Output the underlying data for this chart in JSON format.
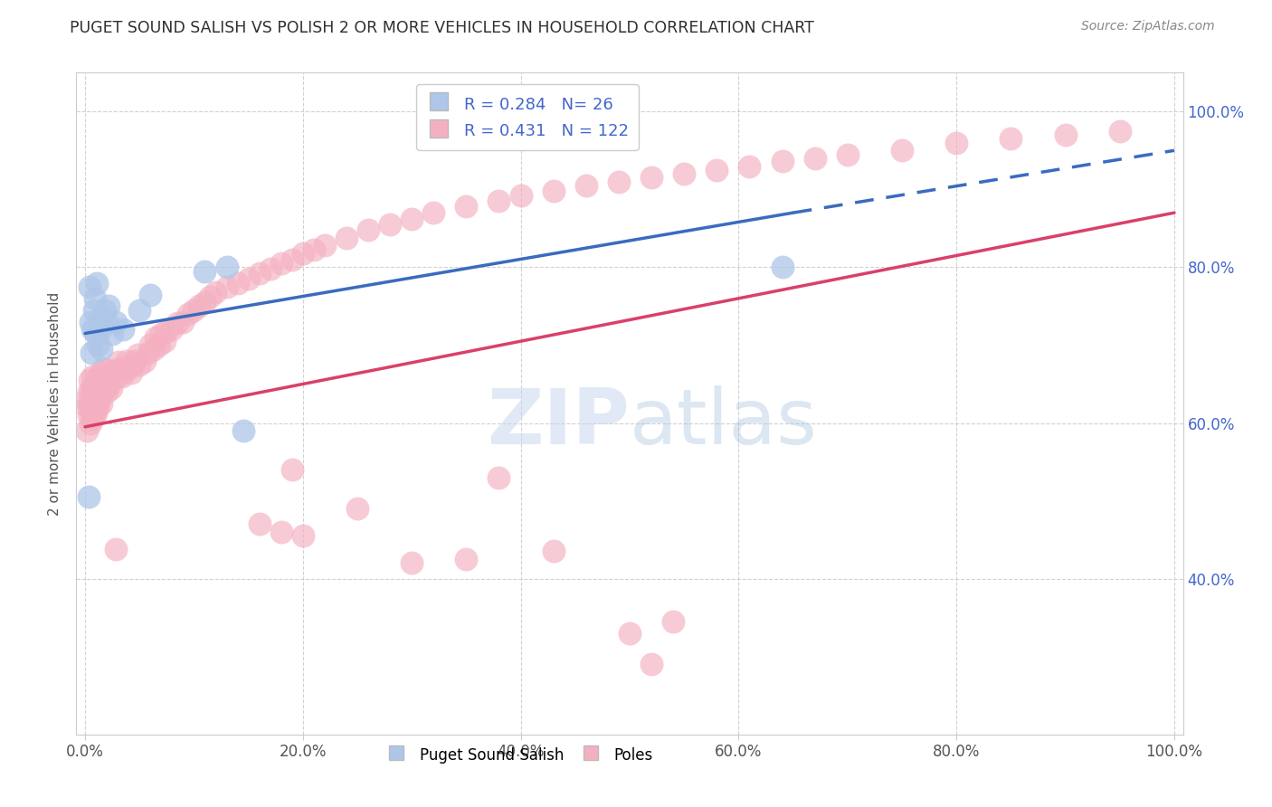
{
  "title": "PUGET SOUND SALISH VS POLISH 2 OR MORE VEHICLES IN HOUSEHOLD CORRELATION CHART",
  "source": "Source: ZipAtlas.com",
  "ylabel": "2 or more Vehicles in Household",
  "blue_R": 0.284,
  "blue_N": 26,
  "pink_R": 0.431,
  "pink_N": 122,
  "blue_color": "#aec6e8",
  "pink_color": "#f4b0c0",
  "blue_line_color": "#3a6bbf",
  "pink_line_color": "#d9406a",
  "grid_color": "#cccccc",
  "title_color": "#303030",
  "source_color": "#888888",
  "tick_color": "#4466cc",
  "ylabel_color": "#555555",
  "watermark_color": "#c8d8ee",
  "xlim": [
    0.0,
    1.0
  ],
  "ylim": [
    0.2,
    1.05
  ],
  "right_yticks": [
    0.4,
    0.6,
    0.8,
    1.0
  ],
  "right_yticklabels": [
    "40.0%",
    "60.0%",
    "80.0%",
    "100.0%"
  ],
  "xticks": [
    0.0,
    0.2,
    0.4,
    0.6,
    0.8,
    1.0
  ],
  "xticklabels": [
    "0.0%",
    "20.0%",
    "40.0%",
    "60.0%",
    "80.0%",
    "100.0%"
  ],
  "blue_x": [
    0.003,
    0.004,
    0.005,
    0.006,
    0.007,
    0.008,
    0.009,
    0.01,
    0.011,
    0.012,
    0.013,
    0.014,
    0.015,
    0.016,
    0.018,
    0.02,
    0.022,
    0.025,
    0.028,
    0.035,
    0.05,
    0.06,
    0.11,
    0.13,
    0.145,
    0.64
  ],
  "blue_y": [
    0.505,
    0.775,
    0.73,
    0.69,
    0.72,
    0.745,
    0.76,
    0.715,
    0.78,
    0.7,
    0.73,
    0.72,
    0.695,
    0.735,
    0.745,
    0.73,
    0.75,
    0.715,
    0.73,
    0.72,
    0.745,
    0.765,
    0.795,
    0.8,
    0.59,
    0.8
  ],
  "pink_x": [
    0.001,
    0.002,
    0.002,
    0.003,
    0.003,
    0.004,
    0.004,
    0.005,
    0.005,
    0.005,
    0.006,
    0.006,
    0.007,
    0.007,
    0.007,
    0.008,
    0.008,
    0.009,
    0.009,
    0.01,
    0.01,
    0.01,
    0.011,
    0.011,
    0.012,
    0.012,
    0.013,
    0.013,
    0.014,
    0.014,
    0.015,
    0.015,
    0.016,
    0.017,
    0.017,
    0.018,
    0.019,
    0.02,
    0.02,
    0.021,
    0.022,
    0.023,
    0.024,
    0.025,
    0.026,
    0.027,
    0.028,
    0.03,
    0.031,
    0.032,
    0.034,
    0.036,
    0.038,
    0.04,
    0.042,
    0.044,
    0.046,
    0.048,
    0.05,
    0.055,
    0.058,
    0.06,
    0.063,
    0.065,
    0.068,
    0.07,
    0.073,
    0.075,
    0.08,
    0.085,
    0.09,
    0.095,
    0.1,
    0.105,
    0.11,
    0.115,
    0.12,
    0.13,
    0.14,
    0.15,
    0.16,
    0.17,
    0.18,
    0.19,
    0.2,
    0.21,
    0.22,
    0.24,
    0.26,
    0.28,
    0.3,
    0.32,
    0.35,
    0.38,
    0.4,
    0.43,
    0.46,
    0.49,
    0.52,
    0.55,
    0.58,
    0.61,
    0.64,
    0.67,
    0.7,
    0.75,
    0.8,
    0.85,
    0.9,
    0.95,
    0.38,
    0.5,
    0.52,
    0.54,
    0.43,
    0.2,
    0.25,
    0.3,
    0.35,
    0.18,
    0.19,
    0.16
  ],
  "pink_y": [
    0.63,
    0.59,
    0.62,
    0.61,
    0.64,
    0.625,
    0.655,
    0.6,
    0.63,
    0.62,
    0.615,
    0.645,
    0.605,
    0.635,
    0.66,
    0.62,
    0.645,
    0.61,
    0.64,
    0.615,
    0.635,
    0.655,
    0.625,
    0.645,
    0.62,
    0.64,
    0.63,
    0.655,
    0.64,
    0.665,
    0.625,
    0.648,
    0.638,
    0.65,
    0.67,
    0.645,
    0.655,
    0.64,
    0.668,
    0.66,
    0.648,
    0.658,
    0.645,
    0.665,
    0.655,
    0.668,
    0.438,
    0.66,
    0.678,
    0.67,
    0.66,
    0.668,
    0.68,
    0.67,
    0.665,
    0.675,
    0.68,
    0.688,
    0.675,
    0.68,
    0.69,
    0.7,
    0.695,
    0.71,
    0.7,
    0.715,
    0.705,
    0.718,
    0.72,
    0.728,
    0.73,
    0.74,
    0.745,
    0.75,
    0.755,
    0.762,
    0.768,
    0.775,
    0.78,
    0.785,
    0.792,
    0.798,
    0.805,
    0.81,
    0.818,
    0.822,
    0.828,
    0.838,
    0.848,
    0.855,
    0.862,
    0.87,
    0.878,
    0.885,
    0.892,
    0.898,
    0.905,
    0.91,
    0.916,
    0.92,
    0.925,
    0.93,
    0.936,
    0.94,
    0.945,
    0.95,
    0.96,
    0.965,
    0.97,
    0.975,
    0.53,
    0.33,
    0.29,
    0.345,
    0.435,
    0.455,
    0.49,
    0.42,
    0.425,
    0.46,
    0.54,
    0.47
  ],
  "blue_line_x0": 0.0,
  "blue_line_y0": 0.715,
  "blue_line_x1": 0.65,
  "blue_line_y1": 0.87,
  "blue_line_x_dashed_end": 1.0,
  "blue_line_y_dashed_end": 0.95,
  "pink_line_x0": 0.0,
  "pink_line_y0": 0.595,
  "pink_line_x1": 1.0,
  "pink_line_y1": 0.87
}
